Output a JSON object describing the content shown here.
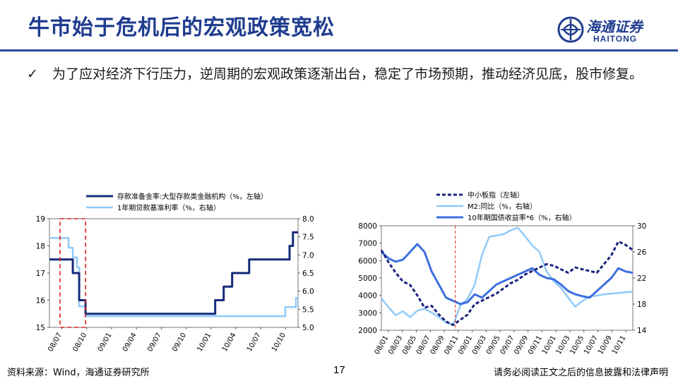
{
  "header": {
    "title": "牛市始于危机后的宏观政策宽松",
    "logo_cn": "海通证券",
    "logo_en": "HAITONG"
  },
  "bullet": {
    "text": "为了应对经济下行压力，逆周期的宏观政策逐渐出台，稳定了市场预期，推动经济见底，股市修复。"
  },
  "footer": {
    "source": "资料来源：Wind，海通证券研究所",
    "page": "17",
    "disclaimer": "请务必阅读正文之后的信息披露和法律声明"
  },
  "colors": {
    "accent": "#1f3c8f",
    "navy": "#1a237e",
    "light_blue": "#90caf9",
    "mid_blue": "#3d6fe0",
    "dark_blue": "#152b7a",
    "highlight_red": "#e02020"
  },
  "chart_data": [
    {
      "type": "line",
      "legend": [
        {
          "name": "存款准备金率:大型存款类金融机构（%，左轴）",
          "style": "solid-navy"
        },
        {
          "name": "1年期贷款基准利率（%，右轴）",
          "style": "solid-lightblue"
        }
      ],
      "x_tick_labels": [
        "08/07",
        "08/10",
        "09/01",
        "09/04",
        "09/07",
        "09/10",
        "10/01",
        "10/04",
        "10/07",
        "10/10"
      ],
      "y_left": {
        "ticks": [
          "15",
          "16",
          "17",
          "18",
          "19"
        ],
        "lim": [
          15,
          19
        ]
      },
      "y_right": {
        "ticks": [
          "5.0",
          "5.5",
          "6.0",
          "6.5",
          "7.0",
          "7.5",
          "8.0"
        ],
        "lim": [
          5.0,
          8.0
        ]
      },
      "series": [
        {
          "name": "存款准备金率:大型存款类金融机构（%，左轴）",
          "axis": "left",
          "x": [
            0,
            5.5,
            5.5,
            7,
            7,
            8.5,
            8.5,
            39,
            39,
            41,
            41,
            43,
            43,
            47,
            47,
            56.5,
            56.5,
            57.3,
            57.3,
            58,
            58,
            58.5
          ],
          "y": [
            17.5,
            17.5,
            17,
            17,
            16,
            16,
            15.5,
            15.5,
            16,
            16,
            16.5,
            16.5,
            17,
            17,
            17.5,
            17.5,
            18,
            18,
            18.5,
            18.5,
            18.5,
            18.5
          ]
        },
        {
          "name": "1年期贷款基准利率（%，右轴）",
          "axis": "right",
          "x": [
            0,
            4.5,
            4.5,
            5.5,
            5.5,
            6.5,
            6.5,
            7,
            7,
            8.5,
            8.5,
            55.5,
            55.5,
            58,
            58,
            58.5
          ],
          "y": [
            7.47,
            7.47,
            7.2,
            7.2,
            6.93,
            6.93,
            6.66,
            6.66,
            5.58,
            5.58,
            5.31,
            5.31,
            5.56,
            5.56,
            5.81,
            5.81
          ]
        }
      ],
      "highlight": {
        "x": [
          2.5,
          8.5
        ],
        "style": "dashed-red-box"
      }
    },
    {
      "type": "line",
      "legend": [
        {
          "name": "中小板指（左轴）",
          "style": "dashed-dark"
        },
        {
          "name": "M2:同比（%，右轴）",
          "style": "solid-lightblue"
        },
        {
          "name": "10年期国债收益率*6（%，右轴）",
          "style": "solid-blue"
        }
      ],
      "x_tick_labels": [
        "08/01",
        "08/03",
        "08/05",
        "08/07",
        "08/09",
        "08/11",
        "09/01",
        "09/03",
        "09/05",
        "09/07",
        "09/09",
        "09/11",
        "10/01",
        "10/03",
        "10/05",
        "10/07",
        "10/09",
        "10/11"
      ],
      "y_left": {
        "ticks": [
          "2000",
          "3000",
          "4000",
          "5000",
          "6000",
          "7000",
          "8000"
        ],
        "lim": [
          2000,
          8000
        ]
      },
      "y_right": {
        "ticks": [
          "14",
          "18",
          "22",
          "26",
          "30"
        ],
        "lim": [
          14,
          30
        ]
      },
      "series": [
        {
          "name": "中小板指（左轴）",
          "axis": "left",
          "x": [
            0,
            1,
            2,
            3,
            4,
            5,
            6,
            7,
            8,
            9,
            10,
            11,
            12,
            13,
            14,
            15,
            16,
            17,
            18,
            19,
            20,
            21,
            22,
            23,
            24,
            25,
            26,
            27,
            28,
            29,
            30,
            31,
            32,
            33,
            34,
            35
          ],
          "y": [
            6600,
            5900,
            5300,
            4800,
            4600,
            4000,
            3300,
            3400,
            2900,
            2500,
            2300,
            2600,
            2900,
            3500,
            3700,
            3900,
            4100,
            4400,
            4700,
            4900,
            5200,
            5400,
            5600,
            5800,
            5700,
            5500,
            5300,
            5600,
            5500,
            5400,
            5300,
            5800,
            6300,
            7100,
            6900,
            6600
          ]
        },
        {
          "name": "M2:同比（%，右轴）",
          "axis": "right",
          "x": [
            0,
            1,
            2,
            3,
            4,
            5,
            6,
            7,
            8,
            9,
            10,
            11,
            12,
            13,
            14,
            15,
            16,
            17,
            18,
            19,
            20,
            21,
            22,
            23,
            24,
            25,
            26,
            27,
            28,
            29,
            30,
            31,
            32,
            33,
            34,
            35
          ],
          "y": [
            18.9,
            17.5,
            16.3,
            16.9,
            16.0,
            17.0,
            17.3,
            16.7,
            16.0,
            15.2,
            14.8,
            17.8,
            18.8,
            21.0,
            25.5,
            28.3,
            28.5,
            28.7,
            29.3,
            29.7,
            28.4,
            27.0,
            26.0,
            23.0,
            21.5,
            20.5,
            19.0,
            17.6,
            18.5,
            19.2,
            19.3,
            19.5,
            19.6,
            19.7,
            19.8,
            19.9
          ]
        },
        {
          "name": "10年期国债收益率*6（%，右轴）",
          "axis": "right",
          "x": [
            0,
            1,
            2,
            3,
            4,
            5,
            6,
            7,
            8,
            9,
            10,
            11,
            12,
            13,
            14,
            15,
            16,
            17,
            18,
            19,
            20,
            21,
            22,
            23,
            24,
            25,
            26,
            27,
            28,
            29,
            30,
            31,
            32,
            33,
            34,
            35
          ],
          "y": [
            26.0,
            25.0,
            24.5,
            24.8,
            26.0,
            27.2,
            26.0,
            23.0,
            21.0,
            19.0,
            18.5,
            18.0,
            18.3,
            19.5,
            19.0,
            20.0,
            21.0,
            21.5,
            22.0,
            22.5,
            23.0,
            23.5,
            22.5,
            22.0,
            21.8,
            21.0,
            20.0,
            19.5,
            19.2,
            19.0,
            20.0,
            21.0,
            22.0,
            23.5,
            23.0,
            22.8
          ]
        }
      ],
      "highlight": {
        "x": [
          10.3
        ],
        "style": "dashed-red-line"
      }
    }
  ]
}
